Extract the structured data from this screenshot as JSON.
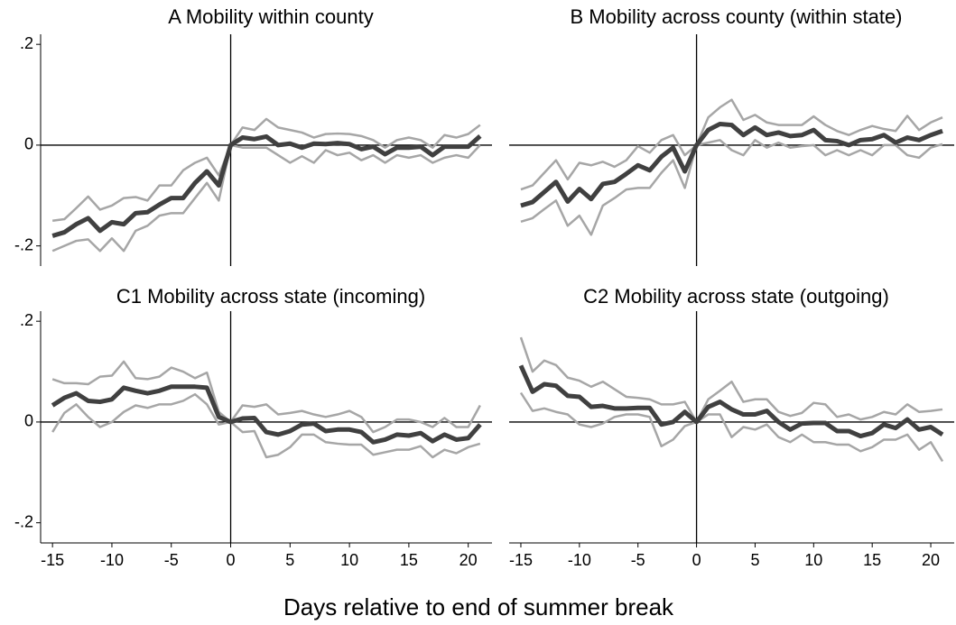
{
  "chart_data": [
    {
      "type": "line",
      "title": "A Mobility within county",
      "x": [
        -15,
        -14,
        -13,
        -12,
        -11,
        -10,
        -9,
        -8,
        -7,
        -6,
        -5,
        -4,
        -3,
        -2,
        -1,
        0,
        1,
        2,
        3,
        4,
        5,
        6,
        7,
        8,
        9,
        10,
        11,
        12,
        13,
        14,
        15,
        16,
        17,
        18,
        19,
        20,
        21
      ],
      "xlim": [
        -16,
        22
      ],
      "ylim": [
        -0.24,
        0.22
      ],
      "yticks": [
        {
          "value": 0.2,
          "label": ".2"
        },
        0,
        {
          "value": -0.2,
          "label": "-.2"
        }
      ],
      "series": [
        {
          "color": "#a6a6a6",
          "values": [
            -0.15,
            -0.147,
            -0.125,
            -0.102,
            -0.128,
            -0.12,
            -0.105,
            -0.103,
            -0.11,
            -0.08,
            -0.08,
            -0.05,
            -0.035,
            -0.025,
            -0.06,
            0,
            0.035,
            0.03,
            0.052,
            0.035,
            0.03,
            0.025,
            0.015,
            0.022,
            0.023,
            0.022,
            0.018,
            0.01,
            -0.005,
            0.01,
            0.015,
            0.01,
            -0.005,
            0.02,
            0.015,
            0.022,
            0.04
          ]
        },
        {
          "color": "#a6a6a6",
          "values": [
            -0.21,
            -0.2,
            -0.19,
            -0.187,
            -0.21,
            -0.185,
            -0.21,
            -0.17,
            -0.16,
            -0.14,
            -0.135,
            -0.135,
            -0.105,
            -0.075,
            -0.11,
            0,
            -0.005,
            -0.005,
            -0.005,
            -0.02,
            -0.035,
            -0.022,
            -0.035,
            -0.01,
            -0.02,
            -0.015,
            -0.03,
            -0.02,
            -0.035,
            -0.02,
            -0.025,
            -0.02,
            -0.035,
            -0.025,
            -0.02,
            -0.025,
            0
          ]
        },
        {
          "color": "#404040",
          "values": [
            -0.18,
            -0.173,
            -0.157,
            -0.145,
            -0.17,
            -0.153,
            -0.157,
            -0.135,
            -0.133,
            -0.118,
            -0.105,
            -0.105,
            -0.075,
            -0.052,
            -0.08,
            0,
            0.015,
            0.012,
            0.017,
            0,
            0.003,
            -0.005,
            0.003,
            0.002,
            0.004,
            0.002,
            -0.008,
            -0.003,
            -0.018,
            -0.005,
            -0.005,
            -0.003,
            -0.02,
            -0.003,
            -0.003,
            -0.003,
            0.018
          ]
        }
      ]
    },
    {
      "type": "line",
      "title": "B Mobility across county (within state)",
      "x": [
        -15,
        -14,
        -13,
        -12,
        -11,
        -10,
        -9,
        -8,
        -7,
        -6,
        -5,
        -4,
        -3,
        -2,
        -1,
        0,
        1,
        2,
        3,
        4,
        5,
        6,
        7,
        8,
        9,
        10,
        11,
        12,
        13,
        14,
        15,
        16,
        17,
        18,
        19,
        20,
        21
      ],
      "xlim": [
        -16,
        22
      ],
      "ylim": [
        -0.24,
        0.22
      ],
      "series": [
        {
          "color": "#a6a6a6",
          "values": [
            -0.088,
            -0.08,
            -0.055,
            -0.03,
            -0.068,
            -0.035,
            -0.04,
            -0.033,
            -0.043,
            -0.03,
            -0.002,
            -0.015,
            0.01,
            0.02,
            -0.02,
            0,
            0.055,
            0.075,
            0.09,
            0.05,
            0.06,
            0.045,
            0.04,
            0.04,
            0.04,
            0.057,
            0.04,
            0.028,
            0.02,
            0.03,
            0.038,
            0.032,
            0.028,
            0.058,
            0.03,
            0.045,
            0.055
          ]
        },
        {
          "color": "#a6a6a6",
          "values": [
            -0.152,
            -0.145,
            -0.127,
            -0.11,
            -0.16,
            -0.14,
            -0.178,
            -0.12,
            -0.105,
            -0.088,
            -0.085,
            -0.085,
            -0.055,
            -0.03,
            -0.085,
            0,
            0.005,
            0.01,
            -0.01,
            -0.02,
            0.01,
            -0.005,
            0.005,
            -0.005,
            -0.002,
            0,
            -0.02,
            -0.01,
            -0.02,
            -0.01,
            -0.02,
            0,
            0,
            -0.02,
            -0.025,
            -0.005,
            0.002
          ]
        },
        {
          "color": "#404040",
          "values": [
            -0.12,
            -0.113,
            -0.093,
            -0.073,
            -0.112,
            -0.087,
            -0.107,
            -0.077,
            -0.073,
            -0.057,
            -0.04,
            -0.05,
            -0.023,
            -0.005,
            -0.052,
            0,
            0.03,
            0.042,
            0.04,
            0.02,
            0.035,
            0.02,
            0.025,
            0.018,
            0.02,
            0.03,
            0.01,
            0.008,
            0,
            0.01,
            0.012,
            0.02,
            0.005,
            0.015,
            0.01,
            0.02,
            0.028
          ]
        }
      ]
    },
    {
      "type": "line",
      "title": "C1 Mobility across state (incoming)",
      "x": [
        -15,
        -14,
        -13,
        -12,
        -11,
        -10,
        -9,
        -8,
        -7,
        -6,
        -5,
        -4,
        -3,
        -2,
        -1,
        0,
        1,
        2,
        3,
        4,
        5,
        6,
        7,
        8,
        9,
        10,
        11,
        12,
        13,
        14,
        15,
        16,
        17,
        18,
        19,
        20,
        21
      ],
      "xlim": [
        -16,
        22
      ],
      "ylim": [
        -0.24,
        0.22
      ],
      "xticks": [
        -15,
        -10,
        -5,
        0,
        5,
        10,
        15,
        20
      ],
      "yticks": [
        {
          "value": 0.2,
          "label": ".2"
        },
        0,
        {
          "value": -0.2,
          "label": "-.2"
        }
      ],
      "series": [
        {
          "color": "#a6a6a6",
          "values": [
            0.085,
            0.077,
            0.077,
            0.075,
            0.09,
            0.092,
            0.12,
            0.087,
            0.085,
            0.09,
            0.108,
            0.1,
            0.087,
            0.098,
            0.02,
            0,
            0.033,
            0.03,
            0.035,
            0.015,
            0.018,
            0.022,
            0.015,
            0.01,
            0.015,
            0.022,
            0.01,
            -0.02,
            -0.01,
            0.005,
            0.005,
            0,
            -0.01,
            0.008,
            -0.01,
            -0.01,
            0.033
          ]
        },
        {
          "color": "#a6a6a6",
          "values": [
            -0.02,
            0.018,
            0.035,
            0.01,
            -0.01,
            0,
            0.02,
            0.033,
            0.028,
            0.035,
            0.035,
            0.042,
            0.055,
            0.035,
            -0.005,
            0,
            -0.02,
            -0.018,
            -0.07,
            -0.065,
            -0.05,
            -0.025,
            -0.025,
            -0.04,
            -0.043,
            -0.045,
            -0.045,
            -0.065,
            -0.06,
            -0.055,
            -0.055,
            -0.048,
            -0.07,
            -0.055,
            -0.062,
            -0.05,
            -0.043
          ]
        },
        {
          "color": "#404040",
          "values": [
            0.033,
            0.048,
            0.057,
            0.042,
            0.04,
            0.045,
            0.068,
            0.062,
            0.057,
            0.062,
            0.07,
            0.07,
            0.07,
            0.068,
            0.01,
            0,
            0.007,
            0.008,
            -0.02,
            -0.025,
            -0.018,
            -0.005,
            -0.003,
            -0.018,
            -0.015,
            -0.015,
            -0.02,
            -0.04,
            -0.035,
            -0.025,
            -0.027,
            -0.022,
            -0.038,
            -0.025,
            -0.035,
            -0.032,
            -0.005
          ]
        }
      ]
    },
    {
      "type": "line",
      "title": "C2 Mobility across state (outgoing)",
      "x": [
        -15,
        -14,
        -13,
        -12,
        -11,
        -10,
        -9,
        -8,
        -7,
        -6,
        -5,
        -4,
        -3,
        -2,
        -1,
        0,
        1,
        2,
        3,
        4,
        5,
        6,
        7,
        8,
        9,
        10,
        11,
        12,
        13,
        14,
        15,
        16,
        17,
        18,
        19,
        20,
        21
      ],
      "xlim": [
        -16,
        22
      ],
      "ylim": [
        -0.24,
        0.22
      ],
      "xticks": [
        -15,
        -10,
        -5,
        0,
        5,
        10,
        15,
        20
      ],
      "series": [
        {
          "color": "#a6a6a6",
          "values": [
            0.168,
            0.1,
            0.122,
            0.113,
            0.088,
            0.082,
            0.07,
            0.08,
            0.065,
            0.05,
            0.048,
            0.045,
            0.035,
            0.035,
            0.04,
            0,
            0.045,
            0.062,
            0.08,
            0.04,
            0.045,
            0.045,
            0.02,
            0.012,
            0.018,
            0.038,
            0.035,
            0.01,
            0.015,
            0.005,
            0.01,
            0.02,
            0.015,
            0.035,
            0.02,
            0.022,
            0.025
          ]
        },
        {
          "color": "#a6a6a6",
          "values": [
            0.058,
            0.022,
            0.027,
            0.02,
            0.015,
            -0.005,
            -0.01,
            -0.003,
            0.01,
            0.015,
            0.015,
            0.01,
            -0.048,
            -0.035,
            -0.008,
            0,
            0.015,
            0.015,
            -0.03,
            -0.01,
            -0.015,
            -0.005,
            -0.03,
            -0.04,
            -0.025,
            -0.04,
            -0.04,
            -0.045,
            -0.045,
            -0.058,
            -0.05,
            -0.035,
            -0.035,
            -0.025,
            -0.055,
            -0.04,
            -0.078
          ]
        },
        {
          "color": "#404040",
          "values": [
            0.112,
            0.06,
            0.075,
            0.072,
            0.052,
            0.05,
            0.03,
            0.032,
            0.027,
            0.027,
            0.028,
            0.028,
            -0.005,
            0,
            0.02,
            0,
            0.03,
            0.04,
            0.025,
            0.015,
            0.015,
            0.022,
            0,
            -0.015,
            -0.003,
            -0.002,
            -0.002,
            -0.018,
            -0.018,
            -0.028,
            -0.022,
            -0.005,
            -0.012,
            0.005,
            -0.015,
            -0.01,
            -0.025
          ]
        }
      ]
    }
  ],
  "xlabel": "Days relative to end of summer break"
}
